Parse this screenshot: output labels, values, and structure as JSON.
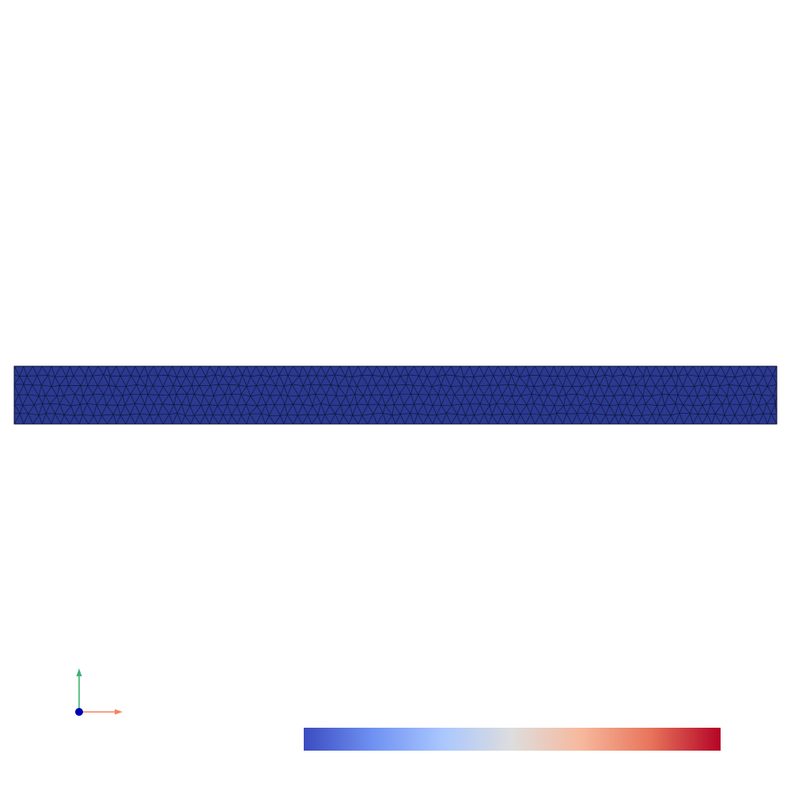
{
  "view": {
    "background_color": "#ffffff"
  },
  "mesh": {
    "fill_color": "#2b3990",
    "edge_color": "#0a0f2e",
    "element_type": "triangle"
  },
  "axes": {
    "x_axis_color": "#f4845f",
    "y_axis_color": "#3cb371",
    "z_axis_color": "#0000b3"
  },
  "scalar_bar": {
    "colormap": "coolwarm",
    "stops": [
      "#3b4cc0",
      "#6f92f3",
      "#aac7fd",
      "#dddddd",
      "#f7b89c",
      "#e7745b",
      "#b40426"
    ]
  }
}
